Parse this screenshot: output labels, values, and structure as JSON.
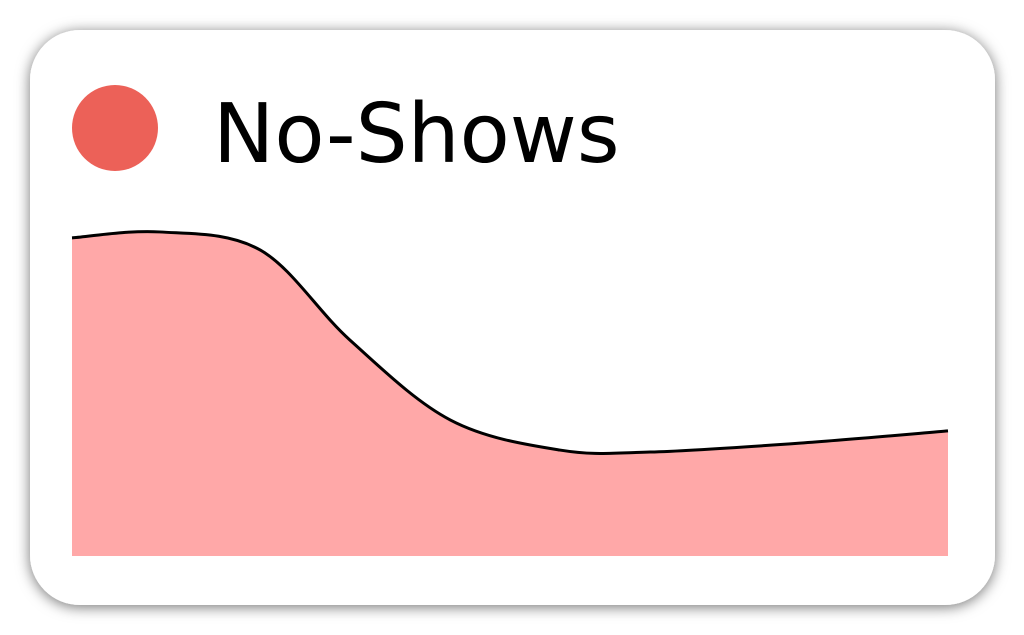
{
  "chart_data": {
    "type": "area",
    "series": [
      {
        "name": "No-Shows",
        "color": "#ffa8a8",
        "legend_color": "#ec6158",
        "line_color": "#000000",
        "x": [
          0,
          10,
          21.5,
          31.7,
          43.2,
          55.7,
          66,
          83.1,
          100
        ],
        "values": [
          96.4,
          98.2,
          92.7,
          65.5,
          41.2,
          32.1,
          31.5,
          34.2,
          37.9
        ]
      }
    ],
    "xlim": [
      0,
      100
    ],
    "ylim": [
      0,
      100
    ]
  }
}
